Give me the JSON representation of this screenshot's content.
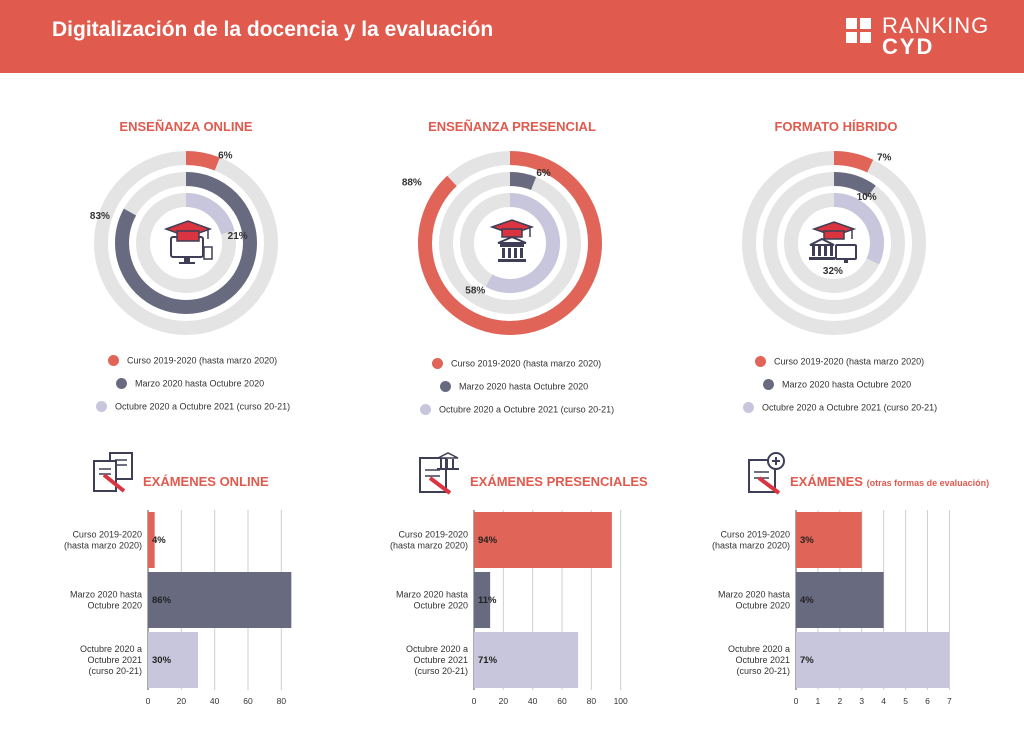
{
  "header": {
    "title": "Digitalización de la docencia y la evaluación"
  },
  "logo": {
    "line1": "RANKING",
    "line2": "CYD"
  },
  "colors": {
    "accent": "#e05a4e",
    "s1": "#e06457",
    "s2": "#686a80",
    "s3": "#c8c6dc",
    "track": "#e4e4e4"
  },
  "icons": [
    "computer-graduation-cap-icon",
    "building-graduation-cap-icon",
    "hybrid-building-computer-icon",
    "documents-pencil-icon",
    "document-building-pencil-icon",
    "document-plus-pencil-icon"
  ],
  "legend": {
    "items": [
      "Curso 2019-2020 (hasta marzo 2020)",
      "Marzo 2020 hasta Octubre 2020",
      "Octubre 2020 a Octubre 2021 (curso 20-21)"
    ]
  },
  "chart_data": [
    {
      "type": "pie",
      "title": "ENSEÑANZA ONLINE",
      "categories": [
        "Curso 2019-2020 (hasta marzo 2020)",
        "Marzo 2020 hasta Octubre 2020",
        "Octubre 2020 a Octubre 2021 (curso 20-21)"
      ],
      "values": [
        6,
        83,
        21
      ],
      "labels": [
        "6%",
        "83%",
        "21%"
      ]
    },
    {
      "type": "pie",
      "title": "ENSEÑANZA PRESENCIAL",
      "categories": [
        "Curso 2019-2020 (hasta marzo 2020)",
        "Marzo 2020 hasta Octubre 2020",
        "Octubre 2020 a Octubre 2021 (curso 20-21)"
      ],
      "values": [
        88,
        6,
        58
      ],
      "labels": [
        "88%",
        "6%",
        "58%"
      ]
    },
    {
      "type": "pie",
      "title": "FORMATO HÍBRIDO",
      "categories": [
        "Curso 2019-2020 (hasta marzo 2020)",
        "Marzo 2020 hasta Octubre 2020",
        "Octubre 2020 a Octubre 2021 (curso 20-21)"
      ],
      "values": [
        7,
        10,
        32
      ],
      "labels": [
        "7%",
        "10%",
        "32%"
      ]
    },
    {
      "type": "bar",
      "title": "EXÁMENES ONLINE",
      "subtitle": "",
      "categories": [
        [
          "Curso 2019-2020",
          "(hasta marzo 2020)"
        ],
        [
          "Marzo 2020 hasta",
          "Octubre 2020"
        ],
        [
          "Octubre 2020 a",
          "Octubre 2021",
          "(curso 20-21)"
        ]
      ],
      "values": [
        4,
        86,
        30
      ],
      "labels": [
        "4%",
        "86%",
        "30%"
      ],
      "xlim": [
        0,
        90
      ],
      "xticks": [
        0,
        20,
        40,
        60,
        80
      ]
    },
    {
      "type": "bar",
      "title": "EXÁMENES PRESENCIALES",
      "subtitle": "",
      "categories": [
        [
          "Curso 2019-2020",
          "(hasta marzo 2020)"
        ],
        [
          "Marzo 2020 hasta",
          "Octubre 2020"
        ],
        [
          "Octubre 2020 a",
          "Octubre 2021",
          "(curso 20-21)"
        ]
      ],
      "values": [
        94,
        11,
        71
      ],
      "labels": [
        "94%",
        "11%",
        "71%"
      ],
      "xlim": [
        0,
        105
      ],
      "xticks": [
        0,
        20,
        40,
        60,
        80,
        100
      ]
    },
    {
      "type": "bar",
      "title": "EXÁMENES",
      "subtitle": "(otras formas de evaluación)",
      "categories": [
        [
          "Curso 2019-2020",
          "(hasta marzo 2020)"
        ],
        [
          "Marzo 2020 hasta",
          "Octubre 2020"
        ],
        [
          "Octubre 2020 a",
          "Octubre 2021",
          "(curso 20-21)"
        ]
      ],
      "values": [
        3,
        4,
        7
      ],
      "labels": [
        "3%",
        "4%",
        "7%"
      ],
      "xlim": [
        0,
        7.3
      ],
      "xticks": [
        0,
        1,
        2,
        3,
        4,
        5,
        6,
        7
      ]
    }
  ]
}
